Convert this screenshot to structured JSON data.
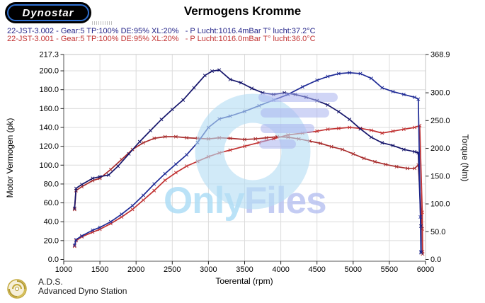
{
  "header": {
    "logo_text": "Dynostar",
    "title": "Vermogens Kromme",
    "runs": [
      {
        "label": "22-JST-3.002 - Gear:5 TP:100% DE:95% XL:20%   - P Lucht:1016.4mBar T° lucht:37.2°C",
        "color": "#26268a"
      },
      {
        "label": "22-JST-3.001 - Gear:5 TP:100% DE:95% XL:20%   - P Lucht:1016.0mBar T° lucht:36.0°C",
        "color": "#c23434"
      }
    ]
  },
  "watermark": {
    "word1": "Only",
    "word2": "Files",
    "word1_color": "#a9dcf6",
    "word2_color": "#b6c0f1",
    "circle_color": "#b5ddf3",
    "wing_color": "#a9b2ee"
  },
  "footer": {
    "abbr": "A.D.S.",
    "name": "Advanced Dyno Station"
  },
  "chart_data": {
    "type": "line",
    "title": "Vermogens Kromme",
    "xlabel": "Toerental (rpm)",
    "ylabel_left": "Motor Vermogen (pk)",
    "ylabel_right": "Torque (Nm)",
    "xlim": [
      1000,
      6000
    ],
    "ylim_left": [
      0,
      217.3
    ],
    "ylim_right": [
      0,
      368.9
    ],
    "x_ticks": [
      1000,
      1500,
      2000,
      2500,
      3000,
      3500,
      4000,
      4500,
      5000,
      5500,
      6000
    ],
    "left_ticks": [
      217.3,
      200,
      180,
      160,
      140,
      120,
      100,
      80,
      60,
      40,
      20,
      0
    ],
    "right_ticks": [
      368.9,
      300,
      250,
      200,
      150,
      100,
      50,
      0
    ],
    "grid": true,
    "legend_position": "top-left",
    "series": [
      {
        "key": "torque-001",
        "run": "22-JST-3.001",
        "quantity": "torque",
        "axis": "right",
        "unit": "Nm",
        "color": "#a82c2c",
        "marker": "x",
        "points": [
          [
            1150,
            90
          ],
          [
            1170,
            124
          ],
          [
            1250,
            131
          ],
          [
            1400,
            142
          ],
          [
            1500,
            146
          ],
          [
            1650,
            162
          ],
          [
            1800,
            180
          ],
          [
            1950,
            198
          ],
          [
            2100,
            210
          ],
          [
            2250,
            218
          ],
          [
            2400,
            221
          ],
          [
            2550,
            221
          ],
          [
            2700,
            219
          ],
          [
            2850,
            218
          ],
          [
            3000,
            217
          ],
          [
            3150,
            219
          ],
          [
            3300,
            218
          ],
          [
            3500,
            216
          ],
          [
            3650,
            217
          ],
          [
            3800,
            219
          ],
          [
            3950,
            221
          ],
          [
            4100,
            220
          ],
          [
            4250,
            217
          ],
          [
            4400,
            213
          ],
          [
            4550,
            209
          ],
          [
            4700,
            203
          ],
          [
            4850,
            198
          ],
          [
            5000,
            190
          ],
          [
            5150,
            182
          ],
          [
            5300,
            176
          ],
          [
            5450,
            171
          ],
          [
            5600,
            167
          ],
          [
            5750,
            164
          ],
          [
            5850,
            164
          ],
          [
            5900,
            170
          ],
          [
            5955,
            55
          ],
          [
            5960,
            10
          ]
        ]
      },
      {
        "key": "power-001",
        "run": "22-JST-3.001",
        "quantity": "power",
        "axis": "left",
        "unit": "pk",
        "color": "#c13232",
        "marker": "x",
        "points": [
          [
            1150,
            14
          ],
          [
            1170,
            20
          ],
          [
            1250,
            24
          ],
          [
            1400,
            29
          ],
          [
            1500,
            32
          ],
          [
            1650,
            38
          ],
          [
            1800,
            45
          ],
          [
            1950,
            53
          ],
          [
            2100,
            63
          ],
          [
            2250,
            73
          ],
          [
            2400,
            84
          ],
          [
            2550,
            92
          ],
          [
            2700,
            99
          ],
          [
            2850,
            104
          ],
          [
            3000,
            109
          ],
          [
            3150,
            113
          ],
          [
            3300,
            116
          ],
          [
            3500,
            120
          ],
          [
            3700,
            124
          ],
          [
            3900,
            128
          ],
          [
            4100,
            132
          ],
          [
            4300,
            134
          ],
          [
            4500,
            136
          ],
          [
            4650,
            138
          ],
          [
            4800,
            139
          ],
          [
            4950,
            140
          ],
          [
            5100,
            139
          ],
          [
            5250,
            137
          ],
          [
            5400,
            134
          ],
          [
            5550,
            136
          ],
          [
            5700,
            138
          ],
          [
            5850,
            140
          ],
          [
            5920,
            142
          ],
          [
            5955,
            50
          ],
          [
            5960,
            8
          ]
        ]
      },
      {
        "key": "torque-002",
        "run": "22-JST-3.002",
        "quantity": "torque",
        "axis": "right",
        "unit": "Nm",
        "color": "#14146a",
        "marker": "x",
        "points": [
          [
            1150,
            92
          ],
          [
            1170,
            128
          ],
          [
            1250,
            135
          ],
          [
            1400,
            146
          ],
          [
            1500,
            149
          ],
          [
            1620,
            152
          ],
          [
            1750,
            168
          ],
          [
            1900,
            190
          ],
          [
            2050,
            212
          ],
          [
            2200,
            232
          ],
          [
            2350,
            252
          ],
          [
            2500,
            270
          ],
          [
            2650,
            287
          ],
          [
            2800,
            309
          ],
          [
            2950,
            331
          ],
          [
            3050,
            339
          ],
          [
            3150,
            341
          ],
          [
            3300,
            324
          ],
          [
            3450,
            318
          ],
          [
            3600,
            308
          ],
          [
            3750,
            300
          ],
          [
            3900,
            297
          ],
          [
            4050,
            300
          ],
          [
            4200,
            297
          ],
          [
            4350,
            292
          ],
          [
            4500,
            286
          ],
          [
            4650,
            278
          ],
          [
            4800,
            266
          ],
          [
            4950,
            252
          ],
          [
            5100,
            235
          ],
          [
            5250,
            220
          ],
          [
            5400,
            210
          ],
          [
            5550,
            205
          ],
          [
            5700,
            198
          ],
          [
            5850,
            194
          ],
          [
            5900,
            192
          ],
          [
            5935,
            60
          ],
          [
            5940,
            12
          ]
        ]
      },
      {
        "key": "power-002",
        "run": "22-JST-3.002",
        "quantity": "power",
        "axis": "left",
        "unit": "pk",
        "color": "#1f2b96",
        "marker": "x",
        "points": [
          [
            1150,
            15
          ],
          [
            1170,
            21
          ],
          [
            1250,
            25
          ],
          [
            1400,
            31
          ],
          [
            1500,
            34
          ],
          [
            1650,
            40
          ],
          [
            1800,
            48
          ],
          [
            1950,
            57
          ],
          [
            2100,
            68
          ],
          [
            2250,
            80
          ],
          [
            2400,
            91
          ],
          [
            2550,
            101
          ],
          [
            2700,
            111
          ],
          [
            2850,
            124
          ],
          [
            3000,
            140
          ],
          [
            3150,
            149
          ],
          [
            3300,
            152
          ],
          [
            3500,
            157
          ],
          [
            3700,
            163
          ],
          [
            3900,
            169
          ],
          [
            4100,
            175
          ],
          [
            4300,
            183
          ],
          [
            4500,
            190
          ],
          [
            4650,
            194
          ],
          [
            4800,
            197
          ],
          [
            4950,
            198
          ],
          [
            5100,
            197
          ],
          [
            5250,
            192
          ],
          [
            5400,
            182
          ],
          [
            5550,
            178
          ],
          [
            5700,
            175
          ],
          [
            5850,
            172
          ],
          [
            5900,
            170
          ],
          [
            5930,
            45
          ],
          [
            5935,
            8
          ]
        ]
      }
    ]
  }
}
